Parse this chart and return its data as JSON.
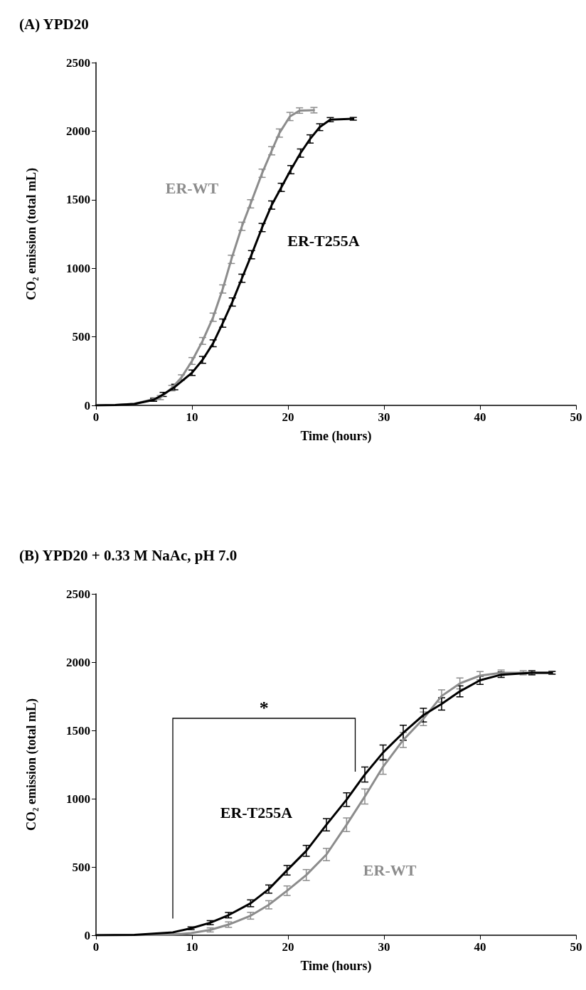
{
  "chart_data": [
    {
      "type": "line",
      "title": "(A) YPD20",
      "xlabel": "Time (hours)",
      "ylabel": "CO₂ emission (total mL)",
      "xlim": [
        0,
        50
      ],
      "xticks": [
        0,
        10,
        20,
        30,
        40,
        50
      ],
      "ylim": [
        0,
        2500
      ],
      "yticks": [
        0,
        500,
        1000,
        1500,
        2000,
        2500
      ],
      "grid": false,
      "legend": false,
      "marker": "none",
      "line_style": "solid",
      "series": [
        {
          "name": "ER-WT",
          "color": "#8c8c8c",
          "x": [
            0,
            2,
            4,
            6,
            6.7,
            7.9,
            8.9,
            10,
            11.1,
            12.2,
            13.2,
            14.1,
            15.2,
            16.1,
            17.3,
            18.3,
            19.1,
            20.2,
            21.2,
            22.7
          ],
          "values": [
            0,
            3,
            12,
            45,
            57,
            126,
            203,
            324,
            470,
            643,
            849,
            1065,
            1306,
            1470,
            1693,
            1857,
            1986,
            2107,
            2150,
            2153
          ],
          "errors": [
            null,
            null,
            null,
            10,
            15,
            20,
            20,
            25,
            25,
            30,
            30,
            30,
            30,
            30,
            30,
            30,
            30,
            30,
            20,
            20
          ]
        },
        {
          "name": "ER-T255A",
          "color": "#000000",
          "x": [
            0,
            2,
            4,
            6,
            7,
            8.2,
            10,
            11.1,
            12.2,
            13.2,
            14.2,
            15.2,
            16.2,
            17.3,
            18.3,
            19.3,
            20.3,
            21.3,
            22.3,
            23.3,
            24.4,
            26.8
          ],
          "values": [
            0,
            3,
            10,
            40,
            80,
            134,
            238,
            332,
            453,
            600,
            754,
            927,
            1099,
            1297,
            1461,
            1590,
            1719,
            1840,
            1943,
            2029,
            2084,
            2090
          ],
          "errors": [
            null,
            null,
            null,
            10,
            15,
            20,
            20,
            25,
            25,
            30,
            30,
            30,
            30,
            30,
            30,
            30,
            30,
            30,
            30,
            25,
            15,
            10
          ]
        }
      ]
    },
    {
      "type": "line",
      "title": "(B) YPD20 + 0.33 M NaAc, pH 7.0",
      "xlabel": "Time (hours)",
      "ylabel": "CO₂ emission (total mL)",
      "xlim": [
        0,
        50
      ],
      "xticks": [
        0,
        10,
        20,
        30,
        40,
        50
      ],
      "ylim": [
        0,
        2500
      ],
      "yticks": [
        0,
        500,
        1000,
        1500,
        2000,
        2500
      ],
      "grid": false,
      "legend": false,
      "marker": "none",
      "line_style": "solid",
      "annotations": [
        "*"
      ],
      "series": [
        {
          "name": "ER-WT",
          "color": "#8c8c8c",
          "x": [
            0,
            4,
            8,
            9.9,
            11.9,
            13.8,
            16.1,
            18,
            19.9,
            21.9,
            24,
            26.1,
            28,
            29.9,
            32,
            34.1,
            36,
            37.9,
            40,
            42.2,
            44.5,
            47.5
          ],
          "values": [
            0,
            1,
            5,
            16,
            39,
            78,
            143,
            223,
            326,
            441,
            591,
            809,
            1016,
            1234,
            1430,
            1585,
            1752,
            1844,
            1901,
            1922,
            1922,
            1922
          ],
          "errors": [
            null,
            null,
            null,
            null,
            15,
            20,
            25,
            30,
            35,
            40,
            45,
            50,
            55,
            55,
            55,
            50,
            45,
            40,
            30,
            20,
            15,
            10
          ]
        },
        {
          "name": "ER-T255A",
          "color": "#000000",
          "x": [
            0,
            4,
            8,
            9.9,
            11.9,
            13.8,
            16.1,
            18,
            19.9,
            21.9,
            24,
            26.1,
            28,
            29.9,
            32,
            34.1,
            36,
            37.9,
            40,
            42.2,
            45.4,
            47.5
          ],
          "values": [
            0,
            3,
            21,
            51,
            92,
            147,
            234,
            338,
            476,
            618,
            809,
            993,
            1177,
            1338,
            1483,
            1612,
            1694,
            1786,
            1867,
            1908,
            1922,
            1922
          ],
          "errors": [
            null,
            null,
            null,
            10,
            15,
            20,
            25,
            30,
            35,
            40,
            45,
            50,
            55,
            55,
            55,
            50,
            45,
            40,
            30,
            20,
            15,
            10
          ]
        }
      ]
    }
  ]
}
